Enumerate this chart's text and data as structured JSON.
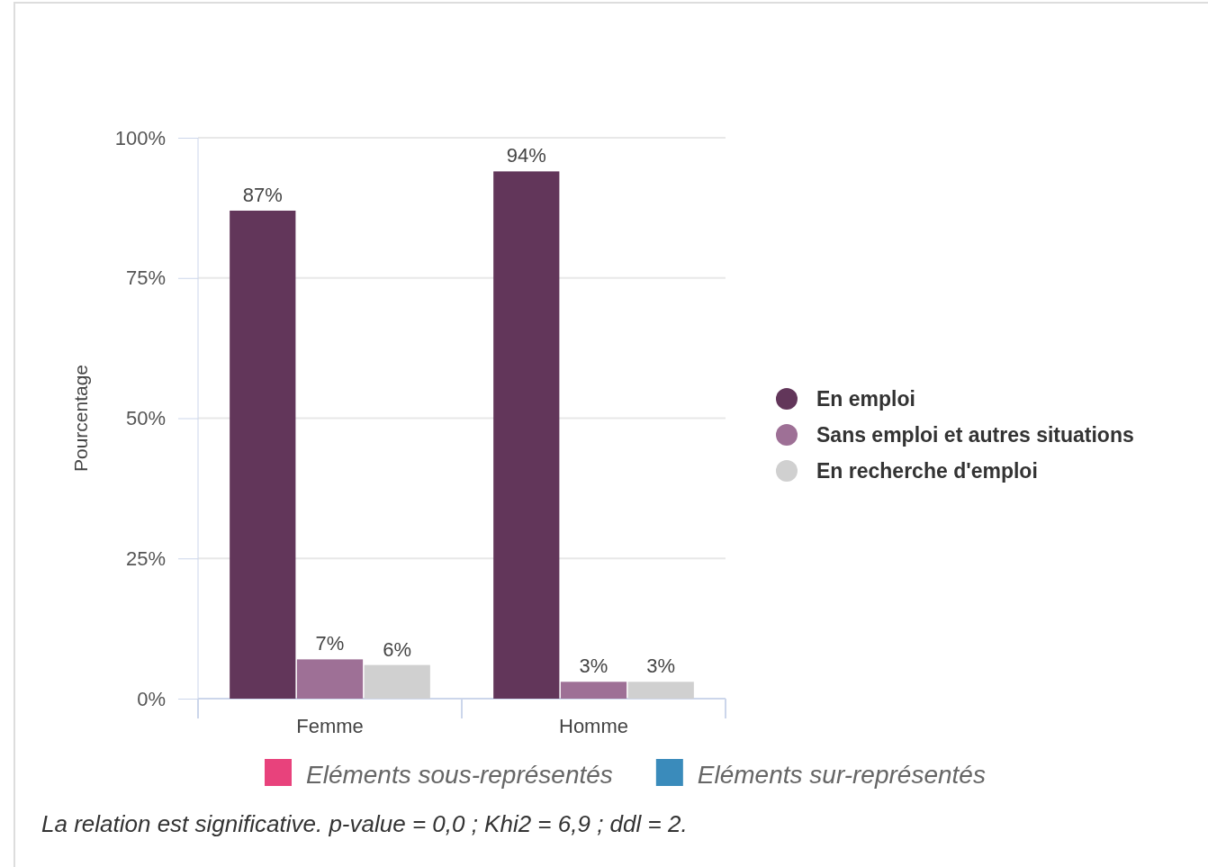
{
  "chart_data": {
    "type": "bar",
    "ylabel": "Pourcentage",
    "categories": [
      "Femme",
      "Homme"
    ],
    "series": [
      {
        "name": "En emploi",
        "color": "#62365a",
        "values": [
          87,
          94
        ],
        "value_labels": [
          "87%",
          "94%"
        ]
      },
      {
        "name": "Sans emploi et autres situations",
        "color": "#9e7096",
        "values": [
          7,
          3
        ],
        "value_labels": [
          "7%",
          "3%"
        ]
      },
      {
        "name": "En recherche d'emploi",
        "color": "#d0d0d0",
        "values": [
          6,
          3
        ],
        "value_labels": [
          "6%",
          "3%"
        ]
      }
    ],
    "ylim": [
      0,
      100
    ],
    "yticks": [
      {
        "value": 0,
        "label": "0%"
      },
      {
        "value": 25,
        "label": "25%"
      },
      {
        "value": 50,
        "label": "50%"
      },
      {
        "value": 75,
        "label": "75%"
      },
      {
        "value": 100,
        "label": "100%"
      }
    ],
    "grid": "y",
    "legend": "right",
    "marker": "circle",
    "annotations": [
      "Eléments sous-représentés",
      "Eléments sur-représentés",
      "La relation est significative. p-value = 0,0 ; Khi2 = 6,9 ; ddl = 2."
    ]
  }
}
